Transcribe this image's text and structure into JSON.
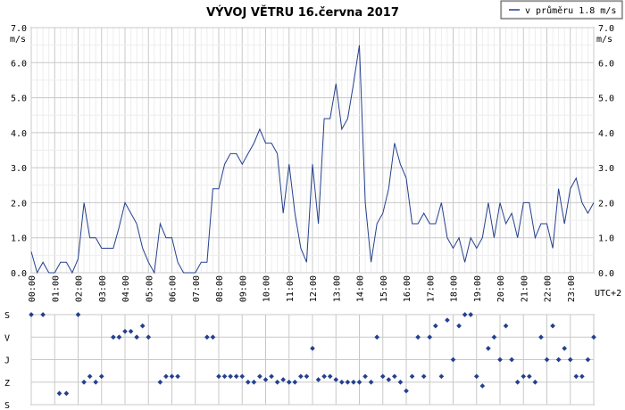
{
  "chart_data": [
    {
      "type": "line",
      "title": "VÝVOJ VĚTRU  16.června 2017",
      "ylabel": "m/s",
      "y_ticks": [
        "0.0",
        "1.0",
        "2.0",
        "3.0",
        "4.0",
        "5.0",
        "6.0",
        "7.0"
      ],
      "ylim": [
        0,
        7
      ],
      "xlim": [
        0,
        24
      ],
      "x_ticks": [
        "00:00",
        "01:00",
        "02:00",
        "03:00",
        "04:00",
        "05:00",
        "06:00",
        "07:00",
        "08:00",
        "09:00",
        "10:00",
        "11:00",
        "12:00",
        "13:00",
        "14:00",
        "15:00",
        "16:00",
        "17:00",
        "18:00",
        "19:00",
        "20:00",
        "21:00",
        "22:00",
        "23:00"
      ],
      "x_unit_label": "UTC+2",
      "legend": "v průměru 1.8 m/s",
      "legend_placement": "top-right",
      "grid": true,
      "series_color": "#24408e",
      "x_hours": [
        0,
        0.25,
        0.5,
        0.75,
        1,
        1.25,
        1.5,
        1.75,
        2,
        2.25,
        2.5,
        2.75,
        3,
        3.25,
        3.5,
        3.75,
        4,
        4.25,
        4.5,
        4.75,
        5,
        5.25,
        5.5,
        5.75,
        6,
        6.25,
        6.5,
        6.75,
        7,
        7.25,
        7.5,
        7.75,
        8,
        8.25,
        8.5,
        8.75,
        9,
        9.25,
        9.5,
        9.75,
        10,
        10.25,
        10.5,
        10.75,
        11,
        11.25,
        11.5,
        11.75,
        12,
        12.25,
        12.5,
        12.75,
        13,
        13.25,
        13.5,
        13.75,
        14,
        14.25,
        14.5,
        14.75,
        15,
        15.25,
        15.5,
        15.75,
        16,
        16.25,
        16.5,
        16.75,
        17,
        17.25,
        17.5,
        17.75,
        18,
        18.25,
        18.5,
        18.75,
        19,
        19.25,
        19.5,
        19.75,
        20,
        20.25,
        20.5,
        20.75,
        21,
        21.25,
        21.5,
        21.75,
        22,
        22.25,
        22.5,
        22.75,
        23,
        23.25,
        23.5,
        23.75,
        24
      ],
      "values": [
        0.6,
        0,
        0.3,
        0,
        0,
        0.3,
        0.3,
        0,
        0.4,
        2.0,
        1.0,
        1.0,
        0.7,
        0.7,
        0.7,
        1.3,
        2.0,
        1.7,
        1.4,
        0.7,
        0.3,
        0,
        1.4,
        1.0,
        1.0,
        0.3,
        0,
        0,
        0,
        0.3,
        0.3,
        2.4,
        2.4,
        3.1,
        3.4,
        3.4,
        3.1,
        3.4,
        3.7,
        4.1,
        3.7,
        3.7,
        3.4,
        1.7,
        3.1,
        1.7,
        0.7,
        0.3,
        3.1,
        1.4,
        4.4,
        4.4,
        5.4,
        4.1,
        4.4,
        5.4,
        6.5,
        2.0,
        0.3,
        1.4,
        1.7,
        2.4,
        3.7,
        3.1,
        2.7,
        1.4,
        1.4,
        1.7,
        1.4,
        1.4,
        2.0,
        1.0,
        0.7,
        1.0,
        0.3,
        1.0,
        0.7,
        1.0,
        2.0,
        1.0,
        2.0,
        1.4,
        1.7,
        1.0,
        2.0,
        2.0,
        1.0,
        1.4,
        1.4,
        0.7,
        2.4,
        1.4,
        2.4,
        2.7,
        2.0,
        1.7,
        2.0
      ]
    },
    {
      "type": "scatter",
      "y_categories": [
        "S",
        "V",
        "J",
        "Z",
        "S"
      ],
      "description": "wind direction",
      "xlim": [
        0,
        24
      ],
      "ylim": [
        0,
        360
      ],
      "series_color": "#24408e",
      "points": [
        [
          0,
          0
        ],
        [
          0.5,
          0
        ],
        [
          1.2,
          315
        ],
        [
          1.5,
          315
        ],
        [
          2,
          0
        ],
        [
          2.25,
          270
        ],
        [
          2.5,
          247
        ],
        [
          2.75,
          270
        ],
        [
          3,
          247
        ],
        [
          3.5,
          90
        ],
        [
          3.75,
          90
        ],
        [
          4,
          67
        ],
        [
          4.25,
          67
        ],
        [
          4.5,
          90
        ],
        [
          4.75,
          45
        ],
        [
          5,
          90
        ],
        [
          5.5,
          270
        ],
        [
          5.75,
          247
        ],
        [
          6,
          247
        ],
        [
          6.25,
          247
        ],
        [
          7.5,
          90
        ],
        [
          7.75,
          90
        ],
        [
          8,
          247
        ],
        [
          8.25,
          247
        ],
        [
          8.5,
          247
        ],
        [
          8.75,
          247
        ],
        [
          9,
          247
        ],
        [
          9.25,
          270
        ],
        [
          9.5,
          270
        ],
        [
          9.75,
          247
        ],
        [
          10,
          260
        ],
        [
          10.25,
          247
        ],
        [
          10.5,
          270
        ],
        [
          10.75,
          260
        ],
        [
          11,
          270
        ],
        [
          11.25,
          270
        ],
        [
          11.5,
          247
        ],
        [
          11.75,
          247
        ],
        [
          12,
          135
        ],
        [
          12.25,
          260
        ],
        [
          12.5,
          247
        ],
        [
          12.75,
          247
        ],
        [
          13,
          260
        ],
        [
          13.25,
          270
        ],
        [
          13.5,
          270
        ],
        [
          13.75,
          270
        ],
        [
          14,
          270
        ],
        [
          14.25,
          247
        ],
        [
          14.5,
          270
        ],
        [
          14.75,
          90
        ],
        [
          15,
          247
        ],
        [
          15.25,
          260
        ],
        [
          15.5,
          247
        ],
        [
          15.75,
          270
        ],
        [
          16,
          305
        ],
        [
          16.25,
          247
        ],
        [
          16.5,
          90
        ],
        [
          16.75,
          247
        ],
        [
          17,
          90
        ],
        [
          17.25,
          45
        ],
        [
          17.5,
          247
        ],
        [
          17.75,
          22
        ],
        [
          18,
          180
        ],
        [
          18.25,
          45
        ],
        [
          18.5,
          0
        ],
        [
          18.75,
          0
        ],
        [
          19,
          247
        ],
        [
          19.25,
          285
        ],
        [
          19.5,
          135
        ],
        [
          19.75,
          90
        ],
        [
          20,
          180
        ],
        [
          20.25,
          45
        ],
        [
          20.5,
          180
        ],
        [
          20.75,
          270
        ],
        [
          21,
          247
        ],
        [
          21.25,
          247
        ],
        [
          21.5,
          270
        ],
        [
          21.75,
          90
        ],
        [
          22,
          180
        ],
        [
          22.25,
          45
        ],
        [
          22.5,
          180
        ],
        [
          22.75,
          135
        ],
        [
          23,
          180
        ],
        [
          23.25,
          247
        ],
        [
          23.5,
          247
        ],
        [
          23.75,
          180
        ],
        [
          24,
          90
        ]
      ]
    }
  ]
}
